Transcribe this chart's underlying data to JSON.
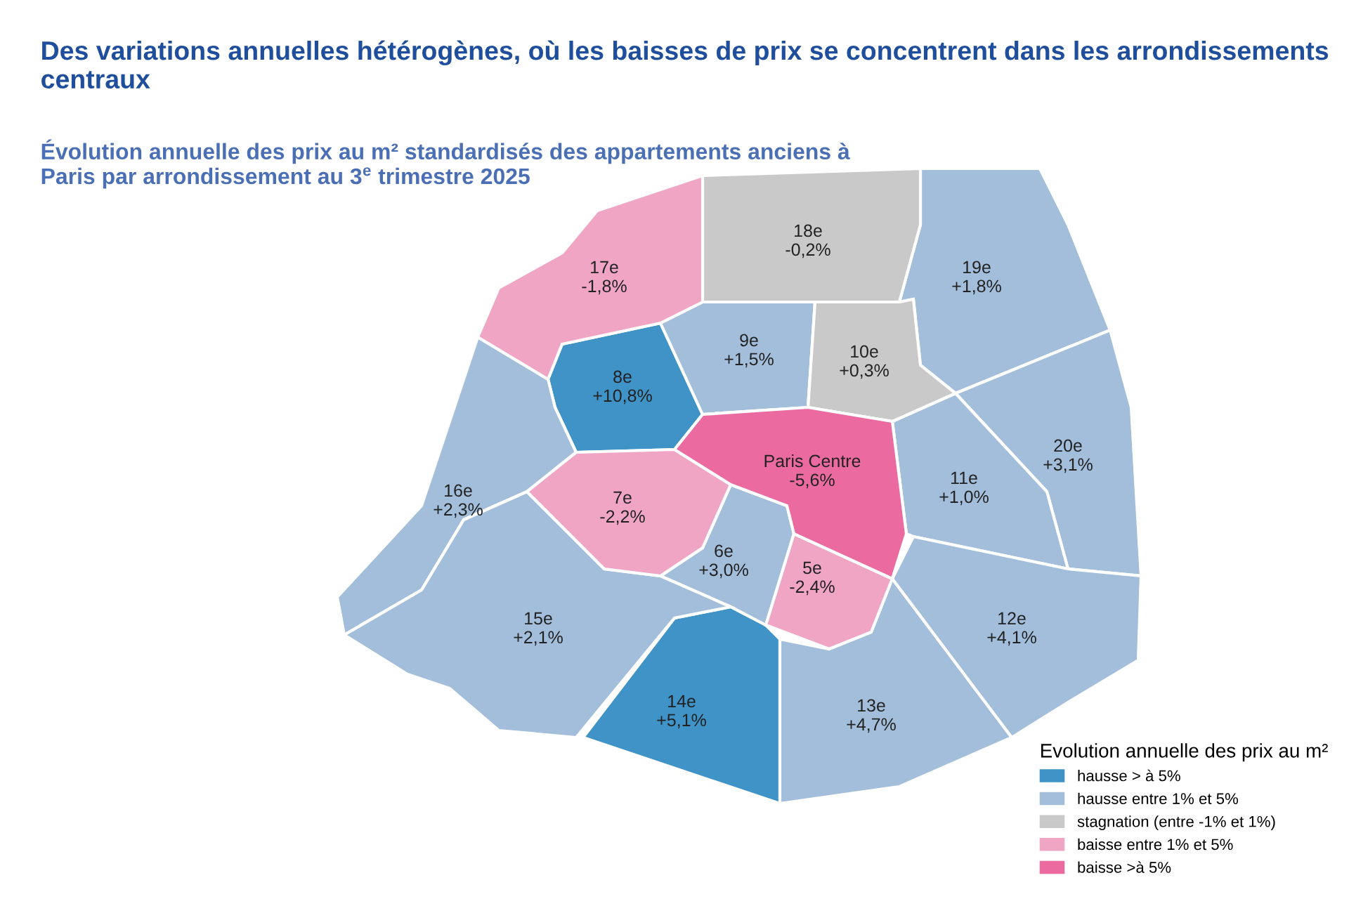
{
  "chart_data": {
    "type": "other",
    "title": "Des variations annuelles hétérogènes, où les baisses de prix se concentrent dans les arrondissements centraux",
    "subtitle": "Évolution annuelle des prix au m² standardisés des appartements anciens à Paris par arrondissement au 3$^{e}$ trimestre 2025",
    "legend_title": "Evolution annuelle des prix au m²",
    "legend": "bottom right",
    "categories": [
      "17e",
      "18e",
      "19e",
      "9e",
      "10e",
      "8e",
      "Paris Centre",
      "20e",
      "11e",
      "16e",
      "7e",
      "6e",
      "5e",
      "15e",
      "14e",
      "13e",
      "12e"
    ],
    "series": [
      {
        "name": "hausse > à 5%",
        "color": "#3f93c6",
        "values": [
          null,
          null,
          null,
          null,
          null,
          10.8,
          null,
          null,
          null,
          null,
          null,
          null,
          null,
          null,
          5.1,
          null,
          null
        ],
        "value_labels": [
          null,
          null,
          null,
          null,
          null,
          "+10,8%",
          null,
          null,
          null,
          null,
          null,
          null,
          null,
          null,
          "+5,1%",
          null,
          null
        ]
      },
      {
        "name": "hausse entre 1% et 5%",
        "color": "#a3bedb",
        "values": [
          null,
          null,
          1.8,
          1.5,
          null,
          null,
          null,
          3.1,
          1.0,
          2.3,
          null,
          3.0,
          null,
          2.1,
          null,
          4.7,
          4.1
        ],
        "value_labels": [
          null,
          null,
          "+1,8%",
          "+1,5%",
          null,
          null,
          null,
          "+3,1%",
          "+1,0%",
          "+2,3%",
          null,
          "+3,0%",
          null,
          "+2,1%",
          null,
          "+4,7%",
          "+4,1%"
        ]
      },
      {
        "name": "stagnation (entre -1% et 1%)",
        "color": "#c9c9c9",
        "values": [
          null,
          -0.2,
          null,
          null,
          0.3,
          null,
          null,
          null,
          null,
          null,
          null,
          null,
          null,
          null,
          null,
          null,
          null
        ],
        "value_labels": [
          null,
          "-0,2%",
          null,
          null,
          "+0,3%",
          null,
          null,
          null,
          null,
          null,
          null,
          null,
          null,
          null,
          null,
          null,
          null
        ]
      },
      {
        "name": "baisse entre 1% et 5%",
        "color": "#f0a5c5",
        "values": [
          -1.8,
          null,
          null,
          null,
          null,
          null,
          null,
          null,
          null,
          null,
          -2.2,
          null,
          -2.4,
          null,
          null,
          null,
          null
        ],
        "value_labels": [
          "-1,8%",
          null,
          null,
          null,
          null,
          null,
          null,
          null,
          null,
          null,
          "-2,2%",
          null,
          "-2,4%",
          null,
          null,
          null,
          null
        ]
      },
      {
        "name": "baisse >à 5%",
        "color": "#eb6aa0",
        "values": [
          null,
          null,
          null,
          null,
          null,
          null,
          -5.6,
          null,
          null,
          null,
          null,
          null,
          null,
          null,
          null,
          null,
          null
        ],
        "value_labels": [
          null,
          null,
          null,
          null,
          null,
          null,
          "-5,6%",
          null,
          null,
          null,
          null,
          null,
          null,
          null,
          null,
          null,
          null
        ]
      }
    ]
  }
}
